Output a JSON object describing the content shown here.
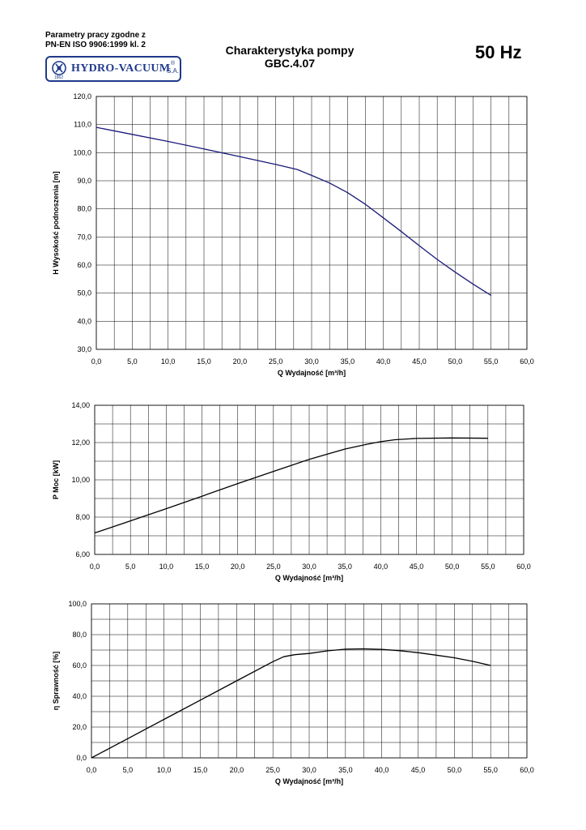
{
  "header": {
    "note_line1": "Parametry pracy zgodne z",
    "note_line2": "PN-EN ISO 9906:1999 kl. 2",
    "logo_text": "HYDRO-VACUUM",
    "logo_reg": "®",
    "logo_sa": "S.A.",
    "logo_year": "1862",
    "title_line1": "Charakterystyka pompy",
    "title_line2": "GBC.4.07",
    "frequency": "50 Hz"
  },
  "colors": {
    "head_curve": "#1a1a7a",
    "curve": "#000000",
    "grid": "#000000",
    "brand": "#1f3a8a"
  },
  "chart_data": [
    {
      "type": "line",
      "ylabel": "H  Wysokość podnoszenia [m]",
      "xlabel": "Q Wydajność [m³/h]",
      "xlim": [
        0,
        60
      ],
      "ylim": [
        30,
        120
      ],
      "x_ticks": [
        "0,0",
        "5,0",
        "10,0",
        "15,0",
        "20,0",
        "25,0",
        "30,0",
        "35,0",
        "40,0",
        "45,0",
        "50,0",
        "55,0",
        "60,0"
      ],
      "y_ticks": [
        "30,0",
        "40,0",
        "50,0",
        "60,0",
        "70,0",
        "80,0",
        "90,0",
        "100,0",
        "110,0",
        "120,0"
      ],
      "grid": true,
      "series": [
        {
          "x": [
            0,
            5,
            10,
            15,
            20,
            25,
            28,
            30,
            32.5,
            35,
            37.5,
            40,
            42.5,
            45,
            47.5,
            50,
            52.5,
            55
          ],
          "values": [
            109,
            106.5,
            104,
            101.3,
            98.6,
            95.8,
            94,
            91.9,
            89.2,
            85.8,
            81.6,
            76.8,
            71.9,
            66.9,
            62,
            57.5,
            53.2,
            49.2
          ]
        }
      ]
    },
    {
      "type": "line",
      "ylabel": "P  Moc [kW]",
      "xlabel": "Q Wydajność [m³/h]",
      "xlim": [
        0,
        60
      ],
      "ylim": [
        6,
        14
      ],
      "x_ticks": [
        "0,0",
        "5,0",
        "10,0",
        "15,0",
        "20,0",
        "25,0",
        "30,0",
        "35,0",
        "40,0",
        "45,0",
        "50,0",
        "55,0",
        "60,0"
      ],
      "y_ticks": [
        "6,00",
        "8,00",
        "10,00",
        "12,00",
        "14,00"
      ],
      "grid": true,
      "series": [
        {
          "x": [
            0,
            5,
            10,
            15,
            20,
            25,
            30,
            35,
            38,
            40,
            42,
            45,
            50,
            55
          ],
          "values": [
            7.15,
            7.8,
            8.45,
            9.12,
            9.8,
            10.45,
            11.1,
            11.65,
            11.9,
            12.05,
            12.15,
            12.22,
            12.25,
            12.23
          ]
        }
      ]
    },
    {
      "type": "line",
      "ylabel": "η Sprawność [%]",
      "xlabel": "Q Wydajność [m³/h]",
      "xlim": [
        0,
        60
      ],
      "ylim": [
        0,
        100
      ],
      "x_ticks": [
        "0,0",
        "5,0",
        "10,0",
        "15,0",
        "20,0",
        "25,0",
        "30,0",
        "35,0",
        "40,0",
        "45,0",
        "50,0",
        "55,0",
        "60,0"
      ],
      "y_ticks": [
        "0,0",
        "20,0",
        "40,0",
        "60,0",
        "80,0",
        "100,0"
      ],
      "grid": true,
      "series": [
        {
          "x": [
            0,
            5,
            10,
            15,
            20,
            25,
            26.5,
            28,
            30,
            32.5,
            35,
            37.5,
            40,
            42.5,
            45,
            47.5,
            50,
            52.5,
            55
          ],
          "values": [
            0,
            12.5,
            25,
            37.5,
            50,
            62.5,
            65.7,
            67,
            67.8,
            69.5,
            70.6,
            70.8,
            70.4,
            69.6,
            68.3,
            66.7,
            65,
            62.7,
            60
          ]
        }
      ]
    }
  ]
}
